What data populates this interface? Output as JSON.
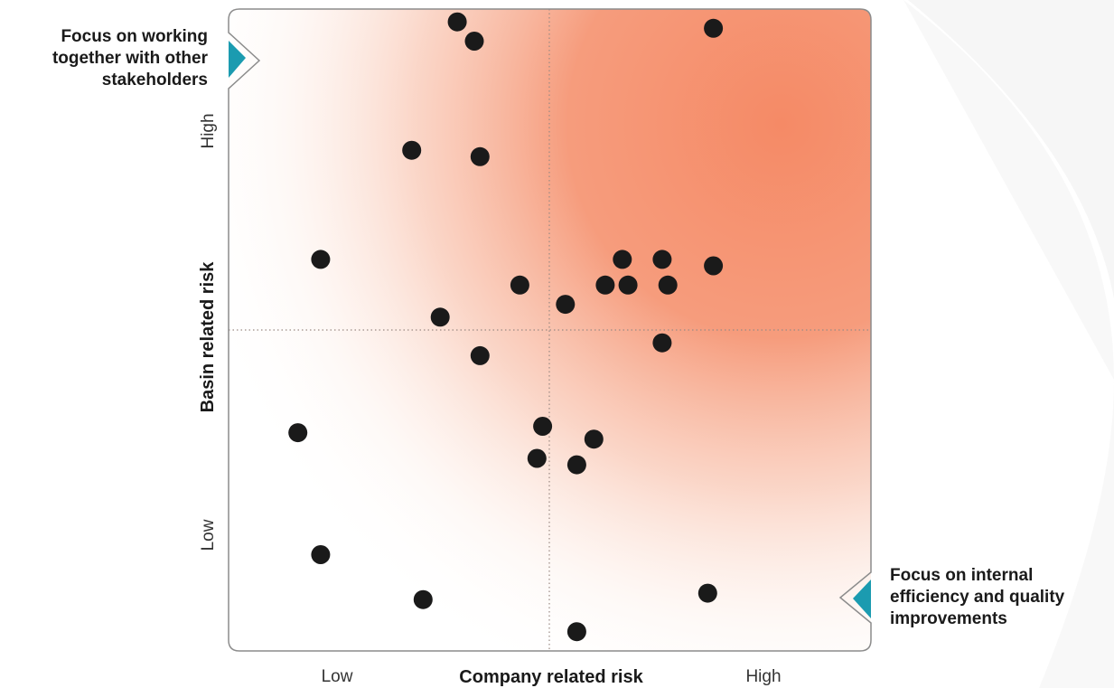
{
  "chart_data": {
    "type": "scatter",
    "xlabel": "Company related risk",
    "ylabel": "Basin related risk",
    "x_ticks": [
      "Low",
      "High"
    ],
    "y_ticks": [
      "Low",
      "High"
    ],
    "xlim": [
      0,
      10
    ],
    "ylim": [
      0,
      10
    ],
    "midlines": {
      "x": 5,
      "y": 5
    },
    "grid": false,
    "points": [
      {
        "x": 3.7,
        "y": 9.8
      },
      {
        "x": 4.0,
        "y": 9.5
      },
      {
        "x": 8.2,
        "y": 9.7
      },
      {
        "x": 2.9,
        "y": 7.8
      },
      {
        "x": 4.1,
        "y": 7.7
      },
      {
        "x": 1.3,
        "y": 6.1
      },
      {
        "x": 4.8,
        "y": 5.7
      },
      {
        "x": 5.6,
        "y": 5.4
      },
      {
        "x": 6.3,
        "y": 5.7
      },
      {
        "x": 6.7,
        "y": 5.7
      },
      {
        "x": 6.6,
        "y": 6.1
      },
      {
        "x": 7.3,
        "y": 6.1
      },
      {
        "x": 7.4,
        "y": 5.7
      },
      {
        "x": 8.2,
        "y": 6.0
      },
      {
        "x": 3.4,
        "y": 5.2
      },
      {
        "x": 7.3,
        "y": 4.8
      },
      {
        "x": 4.1,
        "y": 4.6
      },
      {
        "x": 0.9,
        "y": 3.4
      },
      {
        "x": 5.2,
        "y": 3.5
      },
      {
        "x": 6.1,
        "y": 3.3
      },
      {
        "x": 5.1,
        "y": 3.0
      },
      {
        "x": 5.8,
        "y": 2.9
      },
      {
        "x": 1.3,
        "y": 1.5
      },
      {
        "x": 3.1,
        "y": 0.8
      },
      {
        "x": 8.1,
        "y": 0.9
      },
      {
        "x": 5.8,
        "y": 0.3
      }
    ]
  },
  "annotations": {
    "top_left": "Focus on working together with other stakeholders",
    "bottom_right": "Focus on internal efficiency and quality improvements"
  },
  "colors": {
    "risk_gradient": "#f58a66",
    "marker": "#1a1a1a",
    "pointer": "#1b9bb0",
    "frame": "#8c8c8c"
  }
}
